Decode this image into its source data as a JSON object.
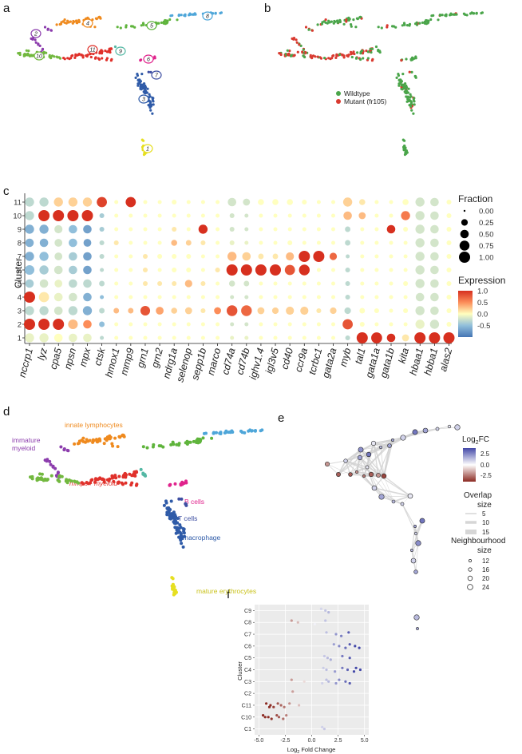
{
  "panel_labels": {
    "a": "a",
    "b": "b",
    "c": "c",
    "d": "d",
    "e": "e",
    "f": "f"
  },
  "colors": {
    "c1": "#e6df21",
    "c2": "#8c3dad",
    "c3": "#2f5ba8",
    "c4": "#ef8a1e",
    "c5": "#5fb43c",
    "c6": "#e0238c",
    "c7": "#3e4fa2",
    "c8": "#4ea6d9",
    "c9": "#54b8a4",
    "c10": "#72b83f",
    "c11": "#e0312b",
    "wildtype": "#4aa54a",
    "mutant": "#d93a30"
  },
  "panel_a": {
    "cluster_tags": [
      "1",
      "2",
      "3",
      "4",
      "5",
      "6",
      "7",
      "8",
      "9",
      "10",
      "11"
    ]
  },
  "panel_b": {
    "legend": [
      {
        "label": "Wildtype",
        "color": "#4aa54a"
      },
      {
        "label": "Mutant (fr105)",
        "color": "#d93a30"
      }
    ]
  },
  "panel_d": {
    "labels": {
      "immature": "immature",
      "myeloid": "myeloid",
      "innate": "innate lymphocytes",
      "mmp9": "mmp9+ myeloid",
      "bcells": "B cells",
      "tcells": "T cells",
      "macrophage": "macrophage",
      "mature": "mature erythrocytes"
    }
  },
  "chart_data": [
    {
      "panel": "c",
      "type": "dot",
      "ylabel": "Cluster",
      "clusters": [
        "1",
        "2",
        "3",
        "4",
        "5",
        "6",
        "7",
        "8",
        "9",
        "10",
        "11"
      ],
      "genes": [
        "nccrp1",
        "lyz",
        "cpa5",
        "npsn",
        "mpx",
        "ctsk",
        "hmox1",
        "mmp9",
        "grn1",
        "grn2",
        "ndrg1a",
        "selenop",
        "sepp1b",
        "marco",
        "cd74a",
        "cd74b",
        "ighv1.4",
        "igl3v5",
        "cd40",
        "ccr9a",
        "tcrbc1",
        "gata2a",
        "myb",
        "tal1",
        "gata1a",
        "gata1b",
        "kita",
        "hbaa1",
        "hbba1",
        "alas2"
      ],
      "legend_fraction": {
        "title": "Fraction",
        "values": [
          "0.00",
          "0.25",
          "0.50",
          "0.75",
          "1.00"
        ]
      },
      "legend_expression": {
        "title": "Expression",
        "ticks": [
          "1.0",
          "0.5",
          "0.0",
          "-0.5"
        ],
        "range": [
          -1,
          1
        ]
      },
      "fraction": {
        "1": [
          0.6,
          0.6,
          0.5,
          0.5,
          0.5,
          0.05,
          0.05,
          0.05,
          0.05,
          0.05,
          0.05,
          0.05,
          0.05,
          0.05,
          0.05,
          0.05,
          0.05,
          0.05,
          0.05,
          0.05,
          0.05,
          0.05,
          0.1,
          1,
          0.95,
          0.5,
          0.3,
          1,
          1,
          1
        ],
        "2": [
          1,
          1,
          1,
          0.7,
          0.5,
          0.15,
          0.05,
          0.05,
          0.05,
          0.05,
          0.05,
          0.05,
          0.05,
          0.05,
          0.05,
          0.05,
          0.05,
          0.05,
          0.05,
          0.05,
          0.05,
          0.05,
          0.8,
          0.1,
          0.05,
          0.05,
          0.05,
          0.6,
          0.6,
          0.1
        ],
        "3": [
          0.6,
          0.6,
          0.5,
          0.6,
          0.6,
          0.15,
          0.15,
          0.15,
          0.7,
          0.4,
          0.2,
          0.3,
          0.1,
          0.3,
          0.9,
          0.9,
          0.3,
          0.25,
          0.45,
          0.45,
          0.1,
          0.25,
          0.25,
          0.15,
          0.1,
          0.05,
          0.1,
          0.6,
          0.5,
          0.1
        ],
        "4": [
          1,
          0.8,
          0.5,
          0.5,
          0.5,
          0.05,
          0.05,
          0.05,
          0.05,
          0.05,
          0.05,
          0.05,
          0.05,
          0.05,
          0.05,
          0.05,
          0.05,
          0.05,
          0.05,
          0.05,
          0.05,
          0.05,
          0.1,
          0.05,
          0.05,
          0.05,
          0.05,
          0.5,
          0.5,
          0.1
        ],
        "5": [
          0.5,
          0.5,
          0.4,
          0.5,
          0.5,
          0.15,
          0.05,
          0.05,
          0.1,
          0.1,
          0.1,
          0.35,
          0.1,
          0.05,
          0.2,
          0.15,
          0.05,
          0.05,
          0.05,
          0.05,
          0.05,
          0.05,
          0.1,
          0.05,
          0.05,
          0.05,
          0.1,
          0.6,
          0.5,
          0.1
        ],
        "6": [
          0.7,
          0.6,
          0.5,
          0.5,
          0.5,
          0.05,
          0.05,
          0.05,
          0.1,
          0.05,
          0.1,
          0.1,
          0.05,
          0.1,
          1,
          1,
          1,
          1,
          0.8,
          0.9,
          0.05,
          0.05,
          0.1,
          0.05,
          0.05,
          0.05,
          0.05,
          0.6,
          0.5,
          0.1
        ],
        "7": [
          0.6,
          0.6,
          0.4,
          0.5,
          0.5,
          0.1,
          0.05,
          0.05,
          0.1,
          0.1,
          0.1,
          0.1,
          0.05,
          0.05,
          0.6,
          0.5,
          0.15,
          0.15,
          0.45,
          1,
          1,
          0.35,
          0.05,
          0.05,
          0.05,
          0.05,
          0.05,
          0.6,
          0.5,
          0.1
        ],
        "8": [
          0.5,
          0.5,
          0.4,
          0.5,
          0.4,
          0.1,
          0.1,
          0.05,
          0.05,
          0.05,
          0.2,
          0.15,
          0.1,
          0.05,
          0.1,
          0.05,
          0.05,
          0.05,
          0.1,
          0.05,
          0.05,
          0.05,
          0.15,
          0.05,
          0.05,
          0.05,
          0.05,
          0.6,
          0.5,
          0.1
        ],
        "9": [
          0.6,
          0.6,
          0.45,
          0.5,
          0.5,
          0.1,
          0.05,
          0.05,
          0.05,
          0.05,
          0.1,
          0.05,
          0.6,
          0.05,
          0.1,
          0.05,
          0.05,
          0.05,
          0.05,
          0.05,
          0.05,
          0.05,
          0.15,
          0.05,
          0.05,
          0.5,
          0.1,
          0.6,
          0.5,
          0.1
        ],
        "10": [
          0.6,
          1,
          1,
          1,
          1,
          0.1,
          0.05,
          0.05,
          0.05,
          0.05,
          0.05,
          0.05,
          0.05,
          0.05,
          0.1,
          0.05,
          0.05,
          0.05,
          0.05,
          0.05,
          0.05,
          0.05,
          0.5,
          0.3,
          0.05,
          0.05,
          0.6,
          0.6,
          0.5,
          0.1
        ],
        "11": [
          0.6,
          0.6,
          0.6,
          0.6,
          0.6,
          0.8,
          0.05,
          0.8,
          0.05,
          0.05,
          0.1,
          0.05,
          0.05,
          0.05,
          0.5,
          0.3,
          0.2,
          0.2,
          0.2,
          0.1,
          0.05,
          0.05,
          0.6,
          0.2,
          0.05,
          0.05,
          0.2,
          0.6,
          0.5,
          0.1
        ]
      },
      "expression": {
        "1": [
          -0.1,
          -0.1,
          0,
          -0.1,
          -0.1,
          -0.3,
          0,
          0,
          0,
          0,
          0,
          0,
          0,
          0,
          -0.1,
          -0.1,
          0,
          0,
          0,
          0,
          0,
          0,
          -0.3,
          1,
          1,
          1,
          0.1,
          1,
          1,
          1
        ],
        "2": [
          1,
          1,
          1,
          0.3,
          0.5,
          -0.5,
          0,
          0,
          0,
          0,
          0,
          0,
          0,
          0,
          -0.2,
          -0.2,
          0,
          0,
          0,
          0,
          0,
          0,
          0.8,
          0,
          0,
          0,
          0,
          -0.1,
          -0.2,
          0
        ],
        "3": [
          -0.3,
          -0.3,
          -0.2,
          -0.3,
          -0.6,
          -0.3,
          0.3,
          0.3,
          0.8,
          0.4,
          0.2,
          0.2,
          0.1,
          0.5,
          0.8,
          0.7,
          0.2,
          0.2,
          0.2,
          0.2,
          0.1,
          0.2,
          -0.3,
          0,
          0,
          0,
          0,
          -0.2,
          -0.2,
          0
        ],
        "4": [
          1,
          0.1,
          -0.1,
          -0.2,
          -0.6,
          -0.5,
          0,
          0,
          0,
          0,
          0,
          0,
          0,
          0,
          -0.2,
          -0.2,
          0,
          0,
          0,
          0,
          0,
          0,
          -0.3,
          0,
          0,
          0,
          0,
          -0.2,
          -0.2,
          0
        ],
        "5": [
          -0.4,
          -0.2,
          -0.1,
          -0.3,
          -0.3,
          -0.3,
          0,
          0,
          0.1,
          0.1,
          0.1,
          0.3,
          0.1,
          0,
          -0.2,
          -0.2,
          0,
          0,
          0,
          0,
          0,
          0,
          -0.3,
          0,
          0,
          0,
          0,
          -0.2,
          -0.2,
          0
        ],
        "6": [
          -0.5,
          -0.4,
          -0.2,
          -0.4,
          -0.7,
          -0.3,
          0,
          0,
          0.1,
          0,
          0,
          0,
          0,
          0.1,
          1,
          1,
          1,
          1,
          0.8,
          1,
          0,
          0,
          -0.3,
          0,
          0,
          0,
          0,
          -0.2,
          -0.2,
          0
        ],
        "7": [
          -0.6,
          -0.5,
          -0.2,
          -0.4,
          -0.7,
          -0.3,
          0,
          0,
          0.1,
          0,
          0,
          0,
          0,
          0,
          0.3,
          0.2,
          0.1,
          0.1,
          0.3,
          1,
          1,
          0.7,
          -0.3,
          0,
          0,
          0,
          0,
          -0.2,
          -0.2,
          0
        ],
        "8": [
          -0.6,
          -0.6,
          -0.2,
          -0.5,
          -0.7,
          -0.3,
          0.1,
          0,
          0,
          0,
          0.3,
          0.2,
          0.1,
          0,
          -0.1,
          -0.1,
          0,
          0,
          0,
          0,
          0,
          0,
          -0.3,
          0,
          0,
          0,
          0,
          -0.2,
          -0.2,
          0
        ],
        "9": [
          -0.6,
          -0.6,
          -0.2,
          -0.5,
          -0.7,
          -0.4,
          0,
          0,
          0,
          0,
          0.1,
          0,
          1,
          0,
          -0.2,
          -0.2,
          0,
          0,
          0,
          0,
          0,
          0,
          -0.3,
          0,
          0,
          1,
          0,
          -0.2,
          -0.2,
          0
        ],
        "10": [
          -0.3,
          1,
          1,
          1,
          1,
          -0.4,
          0,
          0,
          0,
          0,
          0,
          0,
          0,
          0,
          -0.2,
          -0.2,
          0,
          0,
          0,
          0,
          0,
          0,
          0.3,
          0.3,
          0,
          0,
          0.6,
          -0.2,
          -0.2,
          0
        ],
        "11": [
          -0.3,
          -0.3,
          0.2,
          0.2,
          0.2,
          0.9,
          0,
          1,
          0,
          0,
          0,
          0,
          0,
          0,
          -0.2,
          -0.2,
          0,
          0,
          0,
          0,
          0,
          0,
          0.2,
          0.1,
          0,
          0,
          0,
          -0.2,
          -0.2,
          0
        ]
      }
    },
    {
      "panel": "e",
      "type": "network",
      "legend_title": "Log2FC",
      "legend_ticks": [
        "2.5",
        "0.0",
        "-2.5"
      ],
      "overlap_title": [
        "Overlap",
        "size"
      ],
      "overlap_values": [
        "5",
        "10",
        "15"
      ],
      "neigh_title": [
        "Neighbourhood",
        "size"
      ],
      "neigh_values": [
        "12",
        "16",
        "20",
        "24"
      ]
    },
    {
      "panel": "f",
      "type": "scatter",
      "xlabel": "Log2 Fold Change",
      "ylabel": "Cluster",
      "xticks": [
        "-5.0",
        "-2.5",
        "0.0",
        "2.5",
        "5.0"
      ],
      "xlim": [
        -5.4,
        5.4
      ],
      "categories": [
        "C1",
        "C10",
        "C11",
        "C2",
        "C3",
        "C4",
        "C5",
        "C6",
        "C7",
        "C8",
        "C9"
      ],
      "points": [
        {
          "cat": "C1",
          "x": [
            1.0,
            1.2
          ]
        },
        {
          "cat": "C10",
          "x": [
            -4.6,
            -4.1,
            -3.8,
            -3.3,
            -3.1,
            -2.7,
            -2.4,
            -4.4
          ]
        },
        {
          "cat": "C11",
          "x": [
            -4.3,
            -3.9,
            -3.6,
            -3.2,
            -2.9,
            -2.6,
            -2.1,
            -1.2,
            -4.0
          ]
        },
        {
          "cat": "C2",
          "x": [
            -1.8
          ]
        },
        {
          "cat": "C3",
          "x": [
            -1.9,
            -0.7,
            1.0,
            1.4,
            1.6,
            2.3,
            2.6,
            3.2,
            3.6
          ]
        },
        {
          "cat": "C4",
          "x": [
            1.1,
            1.4,
            2.2,
            2.9,
            3.4,
            4.0,
            4.2,
            4.6
          ]
        },
        {
          "cat": "C5",
          "x": [
            1.2,
            1.5,
            1.8,
            2.9,
            3.6
          ]
        },
        {
          "cat": "C6",
          "x": [
            2.1,
            2.6,
            3.2,
            3.6,
            4.1,
            4.5
          ]
        },
        {
          "cat": "C7",
          "x": [
            1.4,
            2.3,
            2.8,
            3.5
          ]
        },
        {
          "cat": "C8",
          "x": [
            -1.9,
            -1.3,
            0.3,
            1.3
          ]
        },
        {
          "cat": "C9",
          "x": [
            0.9,
            1.3,
            1.6
          ]
        }
      ]
    }
  ]
}
